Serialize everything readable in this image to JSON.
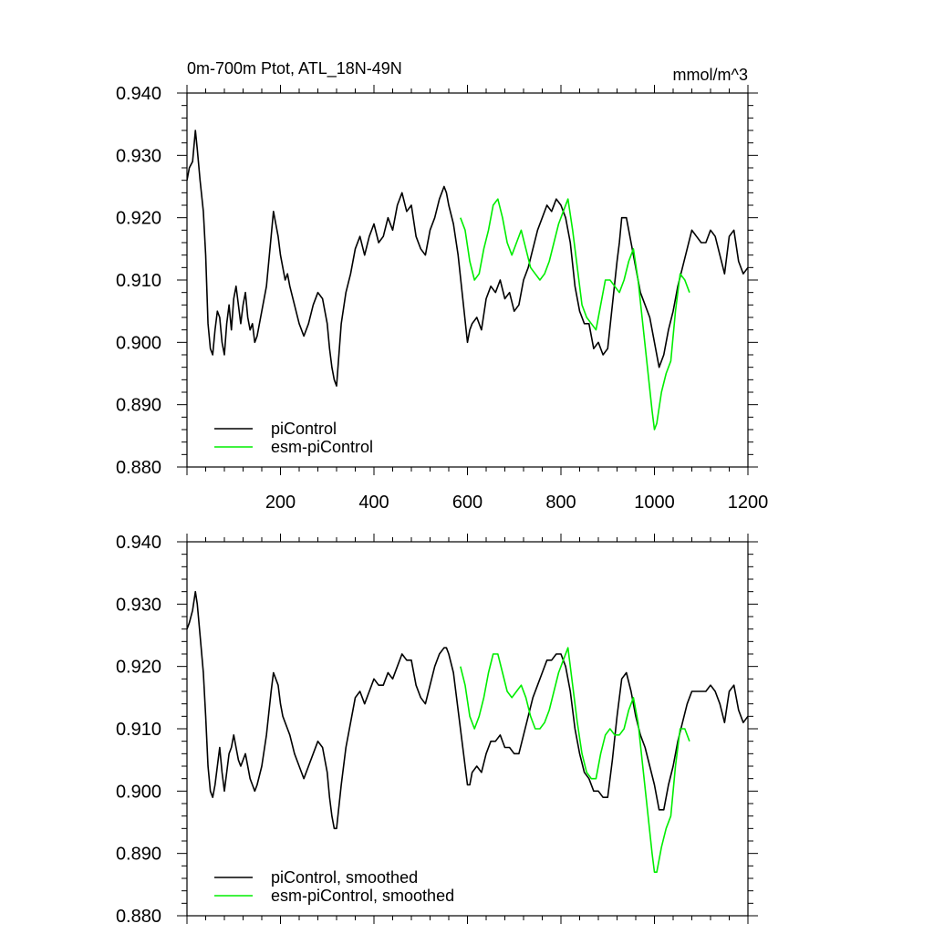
{
  "chart_data": [
    {
      "type": "line",
      "title": "0m-700m Ptot, ATL_18N-49N",
      "units": "mmol/m^3",
      "xlim": [
        0,
        1200
      ],
      "ylim": [
        0.88,
        0.94
      ],
      "x_tick_labels": [
        "200",
        "400",
        "600",
        "800",
        "1000",
        "1200"
      ],
      "y_tick_labels": [
        "0.940",
        "0.930",
        "0.920",
        "0.910",
        "0.900",
        "0.890",
        "0.880"
      ],
      "grid": false,
      "legend_position": "bottom-left",
      "series": [
        {
          "name": "piControl",
          "color": "#000000",
          "x": [
            0,
            5,
            12,
            18,
            22,
            28,
            35,
            40,
            45,
            50,
            55,
            60,
            65,
            70,
            75,
            80,
            85,
            90,
            95,
            100,
            105,
            110,
            115,
            120,
            125,
            130,
            135,
            140,
            145,
            150,
            160,
            170,
            180,
            185,
            190,
            195,
            200,
            205,
            210,
            215,
            220,
            230,
            240,
            250,
            260,
            270,
            280,
            290,
            300,
            305,
            310,
            315,
            320,
            330,
            340,
            350,
            360,
            370,
            380,
            390,
            400,
            410,
            420,
            430,
            440,
            450,
            460,
            470,
            480,
            490,
            500,
            510,
            520,
            530,
            540,
            550,
            555,
            560,
            570,
            580,
            590,
            600,
            605,
            610,
            620,
            630,
            640,
            650,
            660,
            670,
            680,
            690,
            700,
            710,
            720,
            730,
            740,
            750,
            760,
            770,
            780,
            790,
            800,
            810,
            820,
            830,
            840,
            850,
            860,
            870,
            880,
            890,
            900,
            910,
            920,
            925,
            930,
            940,
            950,
            960,
            970,
            980,
            990,
            1000,
            1010,
            1020,
            1030,
            1040,
            1050,
            1060,
            1070,
            1080,
            1090,
            1100,
            1110,
            1120,
            1130,
            1140,
            1150,
            1160,
            1170,
            1180,
            1190,
            1200
          ],
          "y": [
            0.926,
            0.928,
            0.929,
            0.934,
            0.931,
            0.926,
            0.921,
            0.914,
            0.903,
            0.899,
            0.898,
            0.902,
            0.905,
            0.904,
            0.9,
            0.898,
            0.903,
            0.906,
            0.902,
            0.907,
            0.909,
            0.906,
            0.903,
            0.906,
            0.908,
            0.904,
            0.902,
            0.903,
            0.9,
            0.901,
            0.905,
            0.909,
            0.917,
            0.921,
            0.919,
            0.917,
            0.914,
            0.912,
            0.91,
            0.911,
            0.909,
            0.906,
            0.903,
            0.901,
            0.903,
            0.906,
            0.908,
            0.907,
            0.903,
            0.899,
            0.896,
            0.894,
            0.893,
            0.903,
            0.908,
            0.911,
            0.915,
            0.917,
            0.914,
            0.917,
            0.919,
            0.916,
            0.917,
            0.92,
            0.918,
            0.922,
            0.924,
            0.921,
            0.922,
            0.917,
            0.915,
            0.914,
            0.918,
            0.92,
            0.923,
            0.925,
            0.924,
            0.922,
            0.919,
            0.914,
            0.907,
            0.9,
            0.902,
            0.903,
            0.904,
            0.902,
            0.907,
            0.909,
            0.908,
            0.91,
            0.907,
            0.908,
            0.905,
            0.906,
            0.91,
            0.912,
            0.915,
            0.918,
            0.92,
            0.922,
            0.921,
            0.923,
            0.922,
            0.92,
            0.916,
            0.909,
            0.905,
            0.903,
            0.903,
            0.899,
            0.9,
            0.898,
            0.899,
            0.906,
            0.913,
            0.916,
            0.92,
            0.92,
            0.916,
            0.912,
            0.908,
            0.906,
            0.904,
            0.9,
            0.896,
            0.898,
            0.902,
            0.905,
            0.909,
            0.912,
            0.915,
            0.918,
            0.917,
            0.916,
            0.916,
            0.918,
            0.917,
            0.914,
            0.911,
            0.917,
            0.918,
            0.913,
            0.911,
            0.912
          ]
        },
        {
          "name": "esm-piControl",
          "color": "#00ee00",
          "x": [
            585,
            595,
            605,
            615,
            625,
            635,
            645,
            655,
            665,
            675,
            685,
            695,
            705,
            715,
            725,
            735,
            745,
            755,
            765,
            775,
            785,
            795,
            805,
            815,
            825,
            835,
            845,
            855,
            865,
            875,
            885,
            895,
            905,
            915,
            925,
            935,
            945,
            955,
            965,
            975,
            985,
            995,
            1000,
            1005,
            1015,
            1025,
            1035,
            1045,
            1055,
            1065,
            1075
          ],
          "y": [
            0.92,
            0.918,
            0.913,
            0.91,
            0.911,
            0.915,
            0.918,
            0.922,
            0.923,
            0.92,
            0.916,
            0.914,
            0.916,
            0.918,
            0.915,
            0.912,
            0.911,
            0.91,
            0.911,
            0.913,
            0.916,
            0.919,
            0.921,
            0.923,
            0.918,
            0.912,
            0.906,
            0.904,
            0.903,
            0.902,
            0.906,
            0.91,
            0.91,
            0.909,
            0.908,
            0.91,
            0.913,
            0.915,
            0.91,
            0.903,
            0.896,
            0.889,
            0.886,
            0.887,
            0.892,
            0.895,
            0.897,
            0.905,
            0.911,
            0.91,
            0.908
          ]
        }
      ]
    },
    {
      "type": "line",
      "xlim": [
        0,
        1200
      ],
      "ylim": [
        0.88,
        0.94
      ],
      "y_tick_labels": [
        "0.940",
        "0.930",
        "0.920",
        "0.910",
        "0.900",
        "0.890",
        "0.880"
      ],
      "grid": false,
      "legend_position": "bottom-left",
      "series": [
        {
          "name": "piControl, smoothed",
          "color": "#000000",
          "x": [
            0,
            5,
            12,
            18,
            22,
            28,
            35,
            40,
            45,
            50,
            55,
            60,
            65,
            70,
            75,
            80,
            85,
            90,
            95,
            100,
            105,
            110,
            115,
            120,
            125,
            130,
            135,
            140,
            145,
            150,
            160,
            170,
            180,
            185,
            190,
            195,
            200,
            205,
            210,
            215,
            220,
            230,
            240,
            250,
            260,
            270,
            280,
            290,
            300,
            305,
            310,
            315,
            320,
            330,
            340,
            350,
            360,
            370,
            380,
            390,
            400,
            410,
            420,
            430,
            440,
            450,
            460,
            470,
            480,
            490,
            500,
            510,
            520,
            530,
            540,
            550,
            555,
            560,
            570,
            580,
            590,
            600,
            605,
            610,
            620,
            630,
            640,
            650,
            660,
            670,
            680,
            690,
            700,
            710,
            720,
            730,
            740,
            750,
            760,
            770,
            780,
            790,
            800,
            810,
            820,
            830,
            840,
            850,
            860,
            870,
            880,
            890,
            900,
            910,
            920,
            925,
            930,
            940,
            950,
            960,
            970,
            980,
            990,
            1000,
            1010,
            1020,
            1030,
            1040,
            1050,
            1060,
            1070,
            1080,
            1090,
            1100,
            1110,
            1120,
            1130,
            1140,
            1150,
            1160,
            1170,
            1180,
            1190,
            1200
          ],
          "y": [
            0.926,
            0.927,
            0.929,
            0.932,
            0.93,
            0.925,
            0.919,
            0.912,
            0.904,
            0.9,
            0.899,
            0.901,
            0.904,
            0.907,
            0.903,
            0.9,
            0.903,
            0.906,
            0.907,
            0.909,
            0.907,
            0.905,
            0.904,
            0.905,
            0.906,
            0.904,
            0.902,
            0.901,
            0.9,
            0.901,
            0.904,
            0.909,
            0.916,
            0.919,
            0.918,
            0.917,
            0.914,
            0.912,
            0.911,
            0.91,
            0.909,
            0.906,
            0.904,
            0.902,
            0.904,
            0.906,
            0.908,
            0.907,
            0.903,
            0.899,
            0.896,
            0.894,
            0.894,
            0.901,
            0.907,
            0.911,
            0.915,
            0.916,
            0.914,
            0.916,
            0.918,
            0.917,
            0.917,
            0.919,
            0.918,
            0.92,
            0.922,
            0.921,
            0.921,
            0.917,
            0.915,
            0.914,
            0.917,
            0.92,
            0.922,
            0.923,
            0.923,
            0.922,
            0.919,
            0.913,
            0.907,
            0.901,
            0.901,
            0.903,
            0.904,
            0.903,
            0.906,
            0.908,
            0.908,
            0.909,
            0.907,
            0.907,
            0.906,
            0.906,
            0.909,
            0.912,
            0.915,
            0.917,
            0.919,
            0.921,
            0.921,
            0.922,
            0.922,
            0.92,
            0.916,
            0.91,
            0.906,
            0.903,
            0.902,
            0.9,
            0.9,
            0.899,
            0.899,
            0.905,
            0.912,
            0.915,
            0.918,
            0.919,
            0.916,
            0.912,
            0.909,
            0.907,
            0.904,
            0.901,
            0.897,
            0.897,
            0.901,
            0.904,
            0.908,
            0.911,
            0.914,
            0.916,
            0.916,
            0.916,
            0.916,
            0.917,
            0.916,
            0.914,
            0.911,
            0.916,
            0.917,
            0.913,
            0.911,
            0.912
          ]
        },
        {
          "name": "esm-piControl, smoothed",
          "color": "#00ee00",
          "x": [
            585,
            595,
            605,
            615,
            625,
            635,
            645,
            655,
            665,
            675,
            685,
            695,
            705,
            715,
            725,
            735,
            745,
            755,
            765,
            775,
            785,
            795,
            805,
            815,
            825,
            835,
            845,
            855,
            865,
            875,
            885,
            895,
            905,
            915,
            925,
            935,
            945,
            955,
            965,
            975,
            985,
            995,
            1000,
            1005,
            1015,
            1025,
            1035,
            1045,
            1055,
            1065,
            1075
          ],
          "y": [
            0.92,
            0.917,
            0.912,
            0.91,
            0.912,
            0.915,
            0.919,
            0.922,
            0.922,
            0.919,
            0.916,
            0.915,
            0.916,
            0.917,
            0.915,
            0.912,
            0.91,
            0.91,
            0.911,
            0.913,
            0.916,
            0.919,
            0.921,
            0.923,
            0.917,
            0.911,
            0.906,
            0.903,
            0.902,
            0.902,
            0.906,
            0.909,
            0.91,
            0.909,
            0.909,
            0.91,
            0.913,
            0.915,
            0.911,
            0.904,
            0.897,
            0.89,
            0.887,
            0.887,
            0.891,
            0.894,
            0.896,
            0.904,
            0.91,
            0.91,
            0.908
          ]
        }
      ]
    }
  ]
}
